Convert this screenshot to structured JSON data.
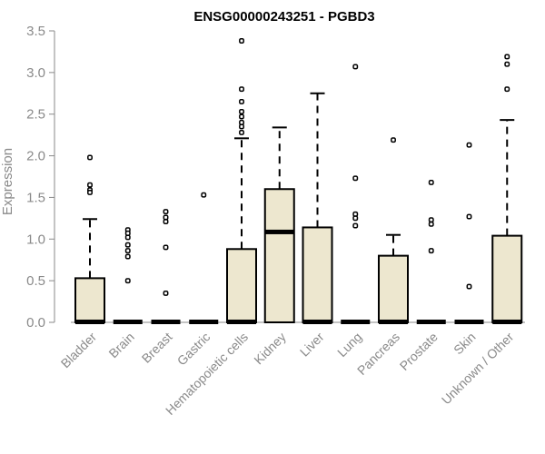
{
  "chart_data": {
    "type": "boxplot",
    "title": "ENSG00000243251 - PGBD3",
    "ylabel": "Expression",
    "xlabel": "",
    "ylim": [
      0,
      3.5
    ],
    "yticks": [
      "0.0",
      "0.5",
      "1.0",
      "1.5",
      "2.0",
      "2.5",
      "3.0",
      "3.5"
    ],
    "colors": {
      "box_fill": "#ede7cf",
      "box_stroke": "#000000",
      "axis": "#8a8a8a",
      "title": "#000000"
    },
    "categories": [
      "Bladder",
      "Brain",
      "Breast",
      "Gastric",
      "Hematopoietic cells",
      "Kidney",
      "Liver",
      "Lung",
      "Pancreas",
      "Prostate",
      "Skin",
      "Unknown / Other"
    ],
    "boxes": [
      {
        "category": "Bladder",
        "q1": 0.0,
        "median": 0.0,
        "q3": 0.53,
        "whisker_low": 0.0,
        "whisker_high": 1.24,
        "outliers": [
          1.98,
          1.65,
          1.59,
          1.56
        ]
      },
      {
        "category": "Brain",
        "q1": 0.0,
        "median": 0.0,
        "q3": 0.0,
        "whisker_low": 0.0,
        "whisker_high": 0.0,
        "outliers": [
          1.11,
          1.07,
          1.02,
          0.93,
          0.86,
          0.79,
          0.5
        ]
      },
      {
        "category": "Breast",
        "q1": 0.0,
        "median": 0.0,
        "q3": 0.0,
        "whisker_low": 0.0,
        "whisker_high": 0.0,
        "outliers": [
          1.33,
          1.26,
          1.21,
          0.9,
          0.35
        ]
      },
      {
        "category": "Gastric",
        "q1": 0.0,
        "median": 0.0,
        "q3": 0.0,
        "whisker_low": 0.0,
        "whisker_high": 0.0,
        "outliers": [
          1.53
        ]
      },
      {
        "category": "Hematopoietic cells",
        "q1": 0.0,
        "median": 0.0,
        "q3": 0.88,
        "whisker_low": 0.0,
        "whisker_high": 2.21,
        "outliers": [
          3.38,
          2.8,
          2.65,
          2.53,
          2.47,
          2.4,
          2.35,
          2.28
        ]
      },
      {
        "category": "Kidney",
        "q1": 0.0,
        "median": 1.08,
        "q3": 1.6,
        "whisker_low": 0.0,
        "whisker_high": 2.34,
        "outliers": []
      },
      {
        "category": "Liver",
        "q1": 0.0,
        "median": 0.0,
        "q3": 1.14,
        "whisker_low": 0.0,
        "whisker_high": 2.75,
        "outliers": []
      },
      {
        "category": "Lung",
        "q1": 0.0,
        "median": 0.0,
        "q3": 0.0,
        "whisker_low": 0.0,
        "whisker_high": 0.0,
        "outliers": [
          3.07,
          1.73,
          1.3,
          1.25,
          1.16
        ]
      },
      {
        "category": "Pancreas",
        "q1": 0.0,
        "median": 0.0,
        "q3": 0.8,
        "whisker_low": 0.0,
        "whisker_high": 1.05,
        "outliers": [
          2.19
        ]
      },
      {
        "category": "Prostate",
        "q1": 0.0,
        "median": 0.0,
        "q3": 0.0,
        "whisker_low": 0.0,
        "whisker_high": 0.0,
        "outliers": [
          1.68,
          1.23,
          1.18,
          0.86
        ]
      },
      {
        "category": "Skin",
        "q1": 0.0,
        "median": 0.0,
        "q3": 0.0,
        "whisker_low": 0.0,
        "whisker_high": 0.0,
        "outliers": [
          2.13,
          1.27,
          0.43
        ]
      },
      {
        "category": "Unknown / Other",
        "q1": 0.0,
        "median": 0.0,
        "q3": 1.04,
        "whisker_low": 0.0,
        "whisker_high": 2.43,
        "outliers": [
          3.19,
          3.1,
          2.8
        ]
      }
    ]
  }
}
